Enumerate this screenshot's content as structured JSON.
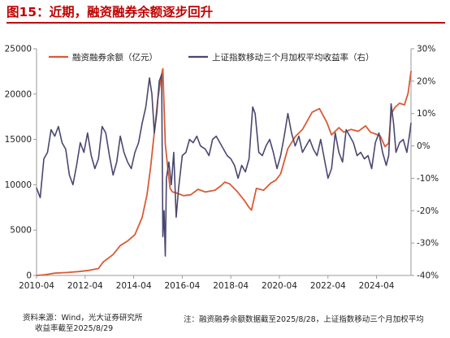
{
  "title": "图15：近期，融资融券余额逐步回升",
  "chart_data": {
    "type": "line",
    "title": "图15：近期，融资融券余额逐步回升",
    "x_ticks": [
      "2010-04",
      "2012-04",
      "2014-04",
      "2016-04",
      "2018-04",
      "2020-04",
      "2022-04",
      "2024-04"
    ],
    "x_range": [
      2010.25,
      2025.67
    ],
    "y_left": {
      "ticks": [
        "0",
        "5000",
        "10000",
        "15000",
        "20000",
        "25000"
      ],
      "range": [
        0,
        25000
      ]
    },
    "y_right": {
      "ticks": [
        "-40%",
        "-30%",
        "-20%",
        "-10%",
        "0%",
        "10%",
        "20%",
        "30%"
      ],
      "range": [
        -40,
        30
      ]
    },
    "legend_position": "top",
    "grid": false,
    "series": [
      {
        "name": "融资融券余额（亿元）",
        "axis": "left",
        "color": "#d95b36",
        "points": [
          [
            2010.25,
            0
          ],
          [
            2010.6,
            80
          ],
          [
            2011.0,
            250
          ],
          [
            2011.5,
            320
          ],
          [
            2012.0,
            430
          ],
          [
            2012.4,
            560
          ],
          [
            2012.8,
            760
          ],
          [
            2013.0,
            1500
          ],
          [
            2013.4,
            2300
          ],
          [
            2013.7,
            3300
          ],
          [
            2014.0,
            3800
          ],
          [
            2014.3,
            4500
          ],
          [
            2014.6,
            6400
          ],
          [
            2014.8,
            8900
          ],
          [
            2014.95,
            12000
          ],
          [
            2015.1,
            15800
          ],
          [
            2015.25,
            19600
          ],
          [
            2015.4,
            22200
          ],
          [
            2015.45,
            22800
          ],
          [
            2015.55,
            14500
          ],
          [
            2015.65,
            12000
          ],
          [
            2015.75,
            9600
          ],
          [
            2015.85,
            9200
          ],
          [
            2016.0,
            9100
          ],
          [
            2016.3,
            8800
          ],
          [
            2016.6,
            8900
          ],
          [
            2016.9,
            9500
          ],
          [
            2017.2,
            9200
          ],
          [
            2017.6,
            9400
          ],
          [
            2017.85,
            9900
          ],
          [
            2018.0,
            10300
          ],
          [
            2018.2,
            10100
          ],
          [
            2018.5,
            9300
          ],
          [
            2018.8,
            8300
          ],
          [
            2019.0,
            7500
          ],
          [
            2019.1,
            7200
          ],
          [
            2019.3,
            9600
          ],
          [
            2019.6,
            9400
          ],
          [
            2019.9,
            10200
          ],
          [
            2020.1,
            10500
          ],
          [
            2020.3,
            11200
          ],
          [
            2020.6,
            14000
          ],
          [
            2020.9,
            15300
          ],
          [
            2021.2,
            16100
          ],
          [
            2021.6,
            18000
          ],
          [
            2021.9,
            18400
          ],
          [
            2022.2,
            16900
          ],
          [
            2022.4,
            15500
          ],
          [
            2022.7,
            16300
          ],
          [
            2022.9,
            15800
          ],
          [
            2023.2,
            16100
          ],
          [
            2023.5,
            15900
          ],
          [
            2023.8,
            16500
          ],
          [
            2024.0,
            15800
          ],
          [
            2024.2,
            15600
          ],
          [
            2024.4,
            15400
          ],
          [
            2024.6,
            14200
          ],
          [
            2024.75,
            14600
          ],
          [
            2024.85,
            17800
          ],
          [
            2025.0,
            18500
          ],
          [
            2025.2,
            19000
          ],
          [
            2025.4,
            18800
          ],
          [
            2025.55,
            20100
          ],
          [
            2025.67,
            22500
          ]
        ]
      },
      {
        "name": "上证指数移动三个月加权平均收益率（右）",
        "axis": "right",
        "color": "#4a4770",
        "points": [
          [
            2010.25,
            -13
          ],
          [
            2010.4,
            -16
          ],
          [
            2010.55,
            -4
          ],
          [
            2010.7,
            -2
          ],
          [
            2010.85,
            5
          ],
          [
            2011.0,
            3
          ],
          [
            2011.15,
            6
          ],
          [
            2011.3,
            1
          ],
          [
            2011.45,
            -1
          ],
          [
            2011.6,
            -9
          ],
          [
            2011.75,
            -12
          ],
          [
            2011.9,
            -6
          ],
          [
            2012.05,
            1
          ],
          [
            2012.2,
            -2
          ],
          [
            2012.35,
            4
          ],
          [
            2012.5,
            -3
          ],
          [
            2012.65,
            -7
          ],
          [
            2012.8,
            -4
          ],
          [
            2012.95,
            6
          ],
          [
            2013.1,
            4
          ],
          [
            2013.25,
            -3
          ],
          [
            2013.4,
            -9
          ],
          [
            2013.55,
            -5
          ],
          [
            2013.7,
            3
          ],
          [
            2013.85,
            -2
          ],
          [
            2014.0,
            -5
          ],
          [
            2014.15,
            -7
          ],
          [
            2014.3,
            -2
          ],
          [
            2014.45,
            1
          ],
          [
            2014.6,
            7
          ],
          [
            2014.75,
            12
          ],
          [
            2014.9,
            21
          ],
          [
            2015.0,
            16
          ],
          [
            2015.1,
            4
          ],
          [
            2015.2,
            10
          ],
          [
            2015.3,
            20
          ],
          [
            2015.4,
            22
          ],
          [
            2015.45,
            -28
          ],
          [
            2015.5,
            -20
          ],
          [
            2015.55,
            -34
          ],
          [
            2015.6,
            -10
          ],
          [
            2015.7,
            -5
          ],
          [
            2015.8,
            -12
          ],
          [
            2015.9,
            -2
          ],
          [
            2016.0,
            -22
          ],
          [
            2016.1,
            -13
          ],
          [
            2016.25,
            -3
          ],
          [
            2016.4,
            -2
          ],
          [
            2016.55,
            2
          ],
          [
            2016.7,
            1
          ],
          [
            2016.85,
            3
          ],
          [
            2017.0,
            0
          ],
          [
            2017.2,
            -1
          ],
          [
            2017.35,
            -3
          ],
          [
            2017.5,
            2
          ],
          [
            2017.65,
            3
          ],
          [
            2017.8,
            1
          ],
          [
            2017.95,
            -1
          ],
          [
            2018.1,
            -3
          ],
          [
            2018.25,
            -4
          ],
          [
            2018.4,
            -6
          ],
          [
            2018.55,
            -10
          ],
          [
            2018.7,
            -6
          ],
          [
            2018.85,
            -8
          ],
          [
            2019.0,
            -4
          ],
          [
            2019.15,
            12
          ],
          [
            2019.25,
            10
          ],
          [
            2019.4,
            -2
          ],
          [
            2019.55,
            -3
          ],
          [
            2019.7,
            0
          ],
          [
            2019.85,
            2
          ],
          [
            2020.0,
            -2
          ],
          [
            2020.15,
            -7
          ],
          [
            2020.3,
            -3
          ],
          [
            2020.45,
            3
          ],
          [
            2020.6,
            10
          ],
          [
            2020.75,
            4
          ],
          [
            2020.9,
            0
          ],
          [
            2021.05,
            3
          ],
          [
            2021.2,
            -2
          ],
          [
            2021.35,
            0
          ],
          [
            2021.5,
            2
          ],
          [
            2021.65,
            -1
          ],
          [
            2021.8,
            -3
          ],
          [
            2021.95,
            2
          ],
          [
            2022.1,
            -4
          ],
          [
            2022.25,
            -10
          ],
          [
            2022.4,
            -7
          ],
          [
            2022.55,
            4
          ],
          [
            2022.7,
            -2
          ],
          [
            2022.85,
            -5
          ],
          [
            2023.0,
            5
          ],
          [
            2023.15,
            3
          ],
          [
            2023.3,
            1
          ],
          [
            2023.45,
            -3
          ],
          [
            2023.6,
            -2
          ],
          [
            2023.75,
            -4
          ],
          [
            2023.9,
            -3
          ],
          [
            2024.05,
            -7
          ],
          [
            2024.2,
            1
          ],
          [
            2024.35,
            4
          ],
          [
            2024.5,
            -2
          ],
          [
            2024.65,
            -6
          ],
          [
            2024.75,
            -3
          ],
          [
            2024.85,
            13
          ],
          [
            2024.95,
            7
          ],
          [
            2025.05,
            -2
          ],
          [
            2025.2,
            1
          ],
          [
            2025.35,
            2
          ],
          [
            2025.5,
            -2
          ],
          [
            2025.6,
            3
          ],
          [
            2025.67,
            7
          ]
        ]
      }
    ]
  },
  "footer": {
    "source_line1": "资料来源：Wind，光大证券研究所",
    "source_line2": "收益率截至2025/8/29",
    "note": "注：融资融券余额数据截至2025/8/28，上证指数移动三个月加权平均"
  }
}
